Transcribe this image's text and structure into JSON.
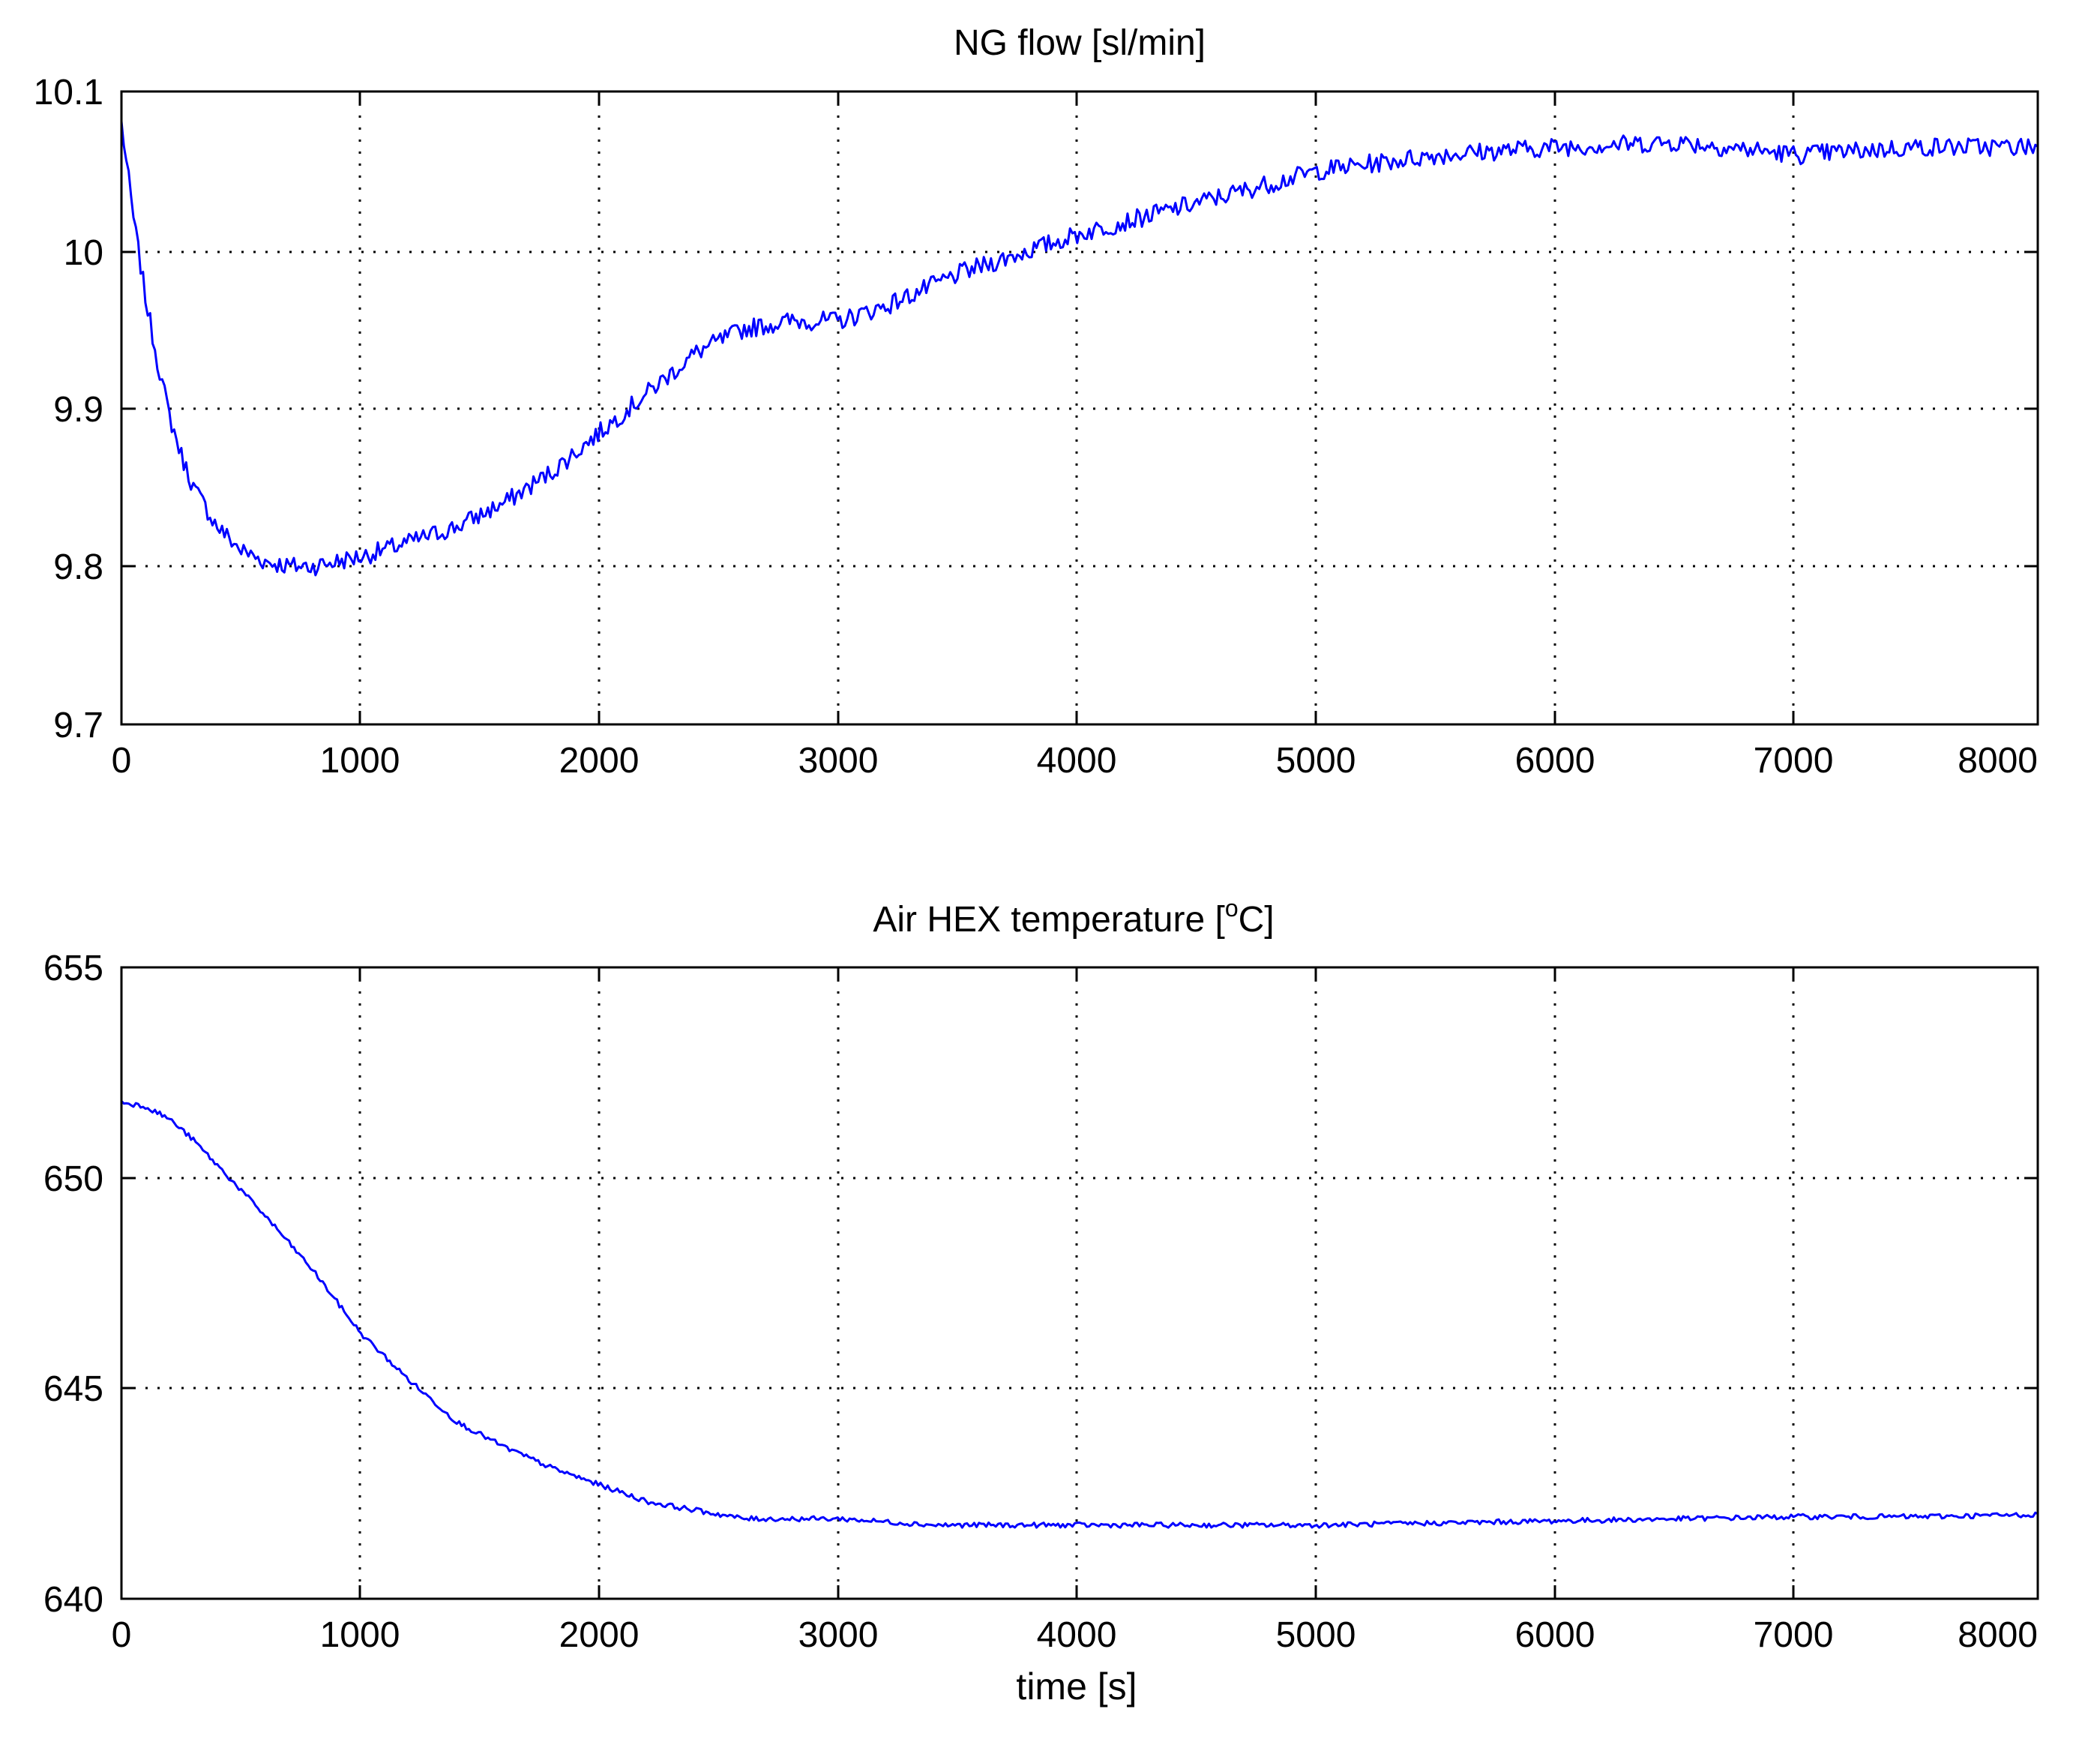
{
  "figure": {
    "background": "#ffffff",
    "line_color": "#0000ff"
  },
  "chart_data": [
    {
      "type": "line",
      "title": "NG flow [sl/min]",
      "xlabel": "",
      "ylabel": "",
      "xlim": [
        0,
        8000
      ],
      "ylim": [
        9.7,
        10.1
      ],
      "xticks": [
        0,
        1000,
        2000,
        3000,
        4000,
        5000,
        6000,
        7000,
        8000
      ],
      "xtick_labels": [
        "0",
        "1000",
        "2000",
        "3000",
        "4000",
        "5000",
        "6000",
        "7000",
        "8000"
      ],
      "yticks": [
        9.7,
        9.8,
        9.9,
        10,
        10.1
      ],
      "ytick_labels": [
        "9.7",
        "9.8",
        "9.9",
        "10",
        "10.1"
      ],
      "grid": true,
      "series": [
        {
          "name": "NG flow",
          "color": "#0000ff",
          "noise": 0.006,
          "x": [
            0,
            50,
            100,
            150,
            200,
            250,
            300,
            400,
            500,
            600,
            700,
            800,
            900,
            1000,
            1200,
            1400,
            1600,
            1800,
            2000,
            2200,
            2400,
            2600,
            2800,
            3000,
            3200,
            3500,
            4000,
            4500,
            5000,
            5500,
            6000,
            6500,
            7000,
            7500,
            8000
          ],
          "y": [
            10.08,
            10.02,
            9.97,
            9.93,
            9.895,
            9.87,
            9.85,
            9.825,
            9.81,
            9.803,
            9.8,
            9.8,
            9.803,
            9.806,
            9.815,
            9.825,
            9.84,
            9.86,
            9.885,
            9.91,
            9.935,
            9.95,
            9.955,
            9.955,
            9.965,
            9.985,
            10.01,
            10.03,
            10.05,
            10.06,
            10.065,
            10.068,
            10.06,
            10.065,
            10.065
          ]
        }
      ]
    },
    {
      "type": "line",
      "title_prefix": "Air HEX temperature [",
      "title_sup": "o",
      "title_suffix": "C]",
      "title": "Air HEX temperature [oC]",
      "xlabel": "time [s]",
      "ylabel": "",
      "xlim": [
        0,
        8000
      ],
      "ylim": [
        640,
        655
      ],
      "xticks": [
        0,
        1000,
        2000,
        3000,
        4000,
        5000,
        6000,
        7000,
        8000
      ],
      "xtick_labels": [
        "0",
        "1000",
        "2000",
        "3000",
        "4000",
        "5000",
        "6000",
        "7000",
        "8000"
      ],
      "yticks": [
        640,
        645,
        650,
        655
      ],
      "ytick_labels": [
        "640",
        "645",
        "650",
        "655"
      ],
      "grid": true,
      "series": [
        {
          "name": "Air HEX temperature",
          "color": "#0000ff",
          "noise": 0.06,
          "x": [
            0,
            100,
            200,
            300,
            400,
            600,
            800,
            1000,
            1200,
            1400,
            1600,
            1800,
            2000,
            2200,
            2400,
            2600,
            2800,
            3000,
            3400,
            4000,
            4500,
            5000,
            5500,
            6000,
            6500,
            7000,
            7500,
            8000
          ],
          "y": [
            651.8,
            651.7,
            651.4,
            650.9,
            650.3,
            649.1,
            647.8,
            646.3,
            645.2,
            644.2,
            643.6,
            643.1,
            642.7,
            642.3,
            642.1,
            641.9,
            641.9,
            641.9,
            641.75,
            641.75,
            641.75,
            641.75,
            641.8,
            641.85,
            641.9,
            641.95,
            641.95,
            642.0
          ]
        }
      ]
    }
  ]
}
